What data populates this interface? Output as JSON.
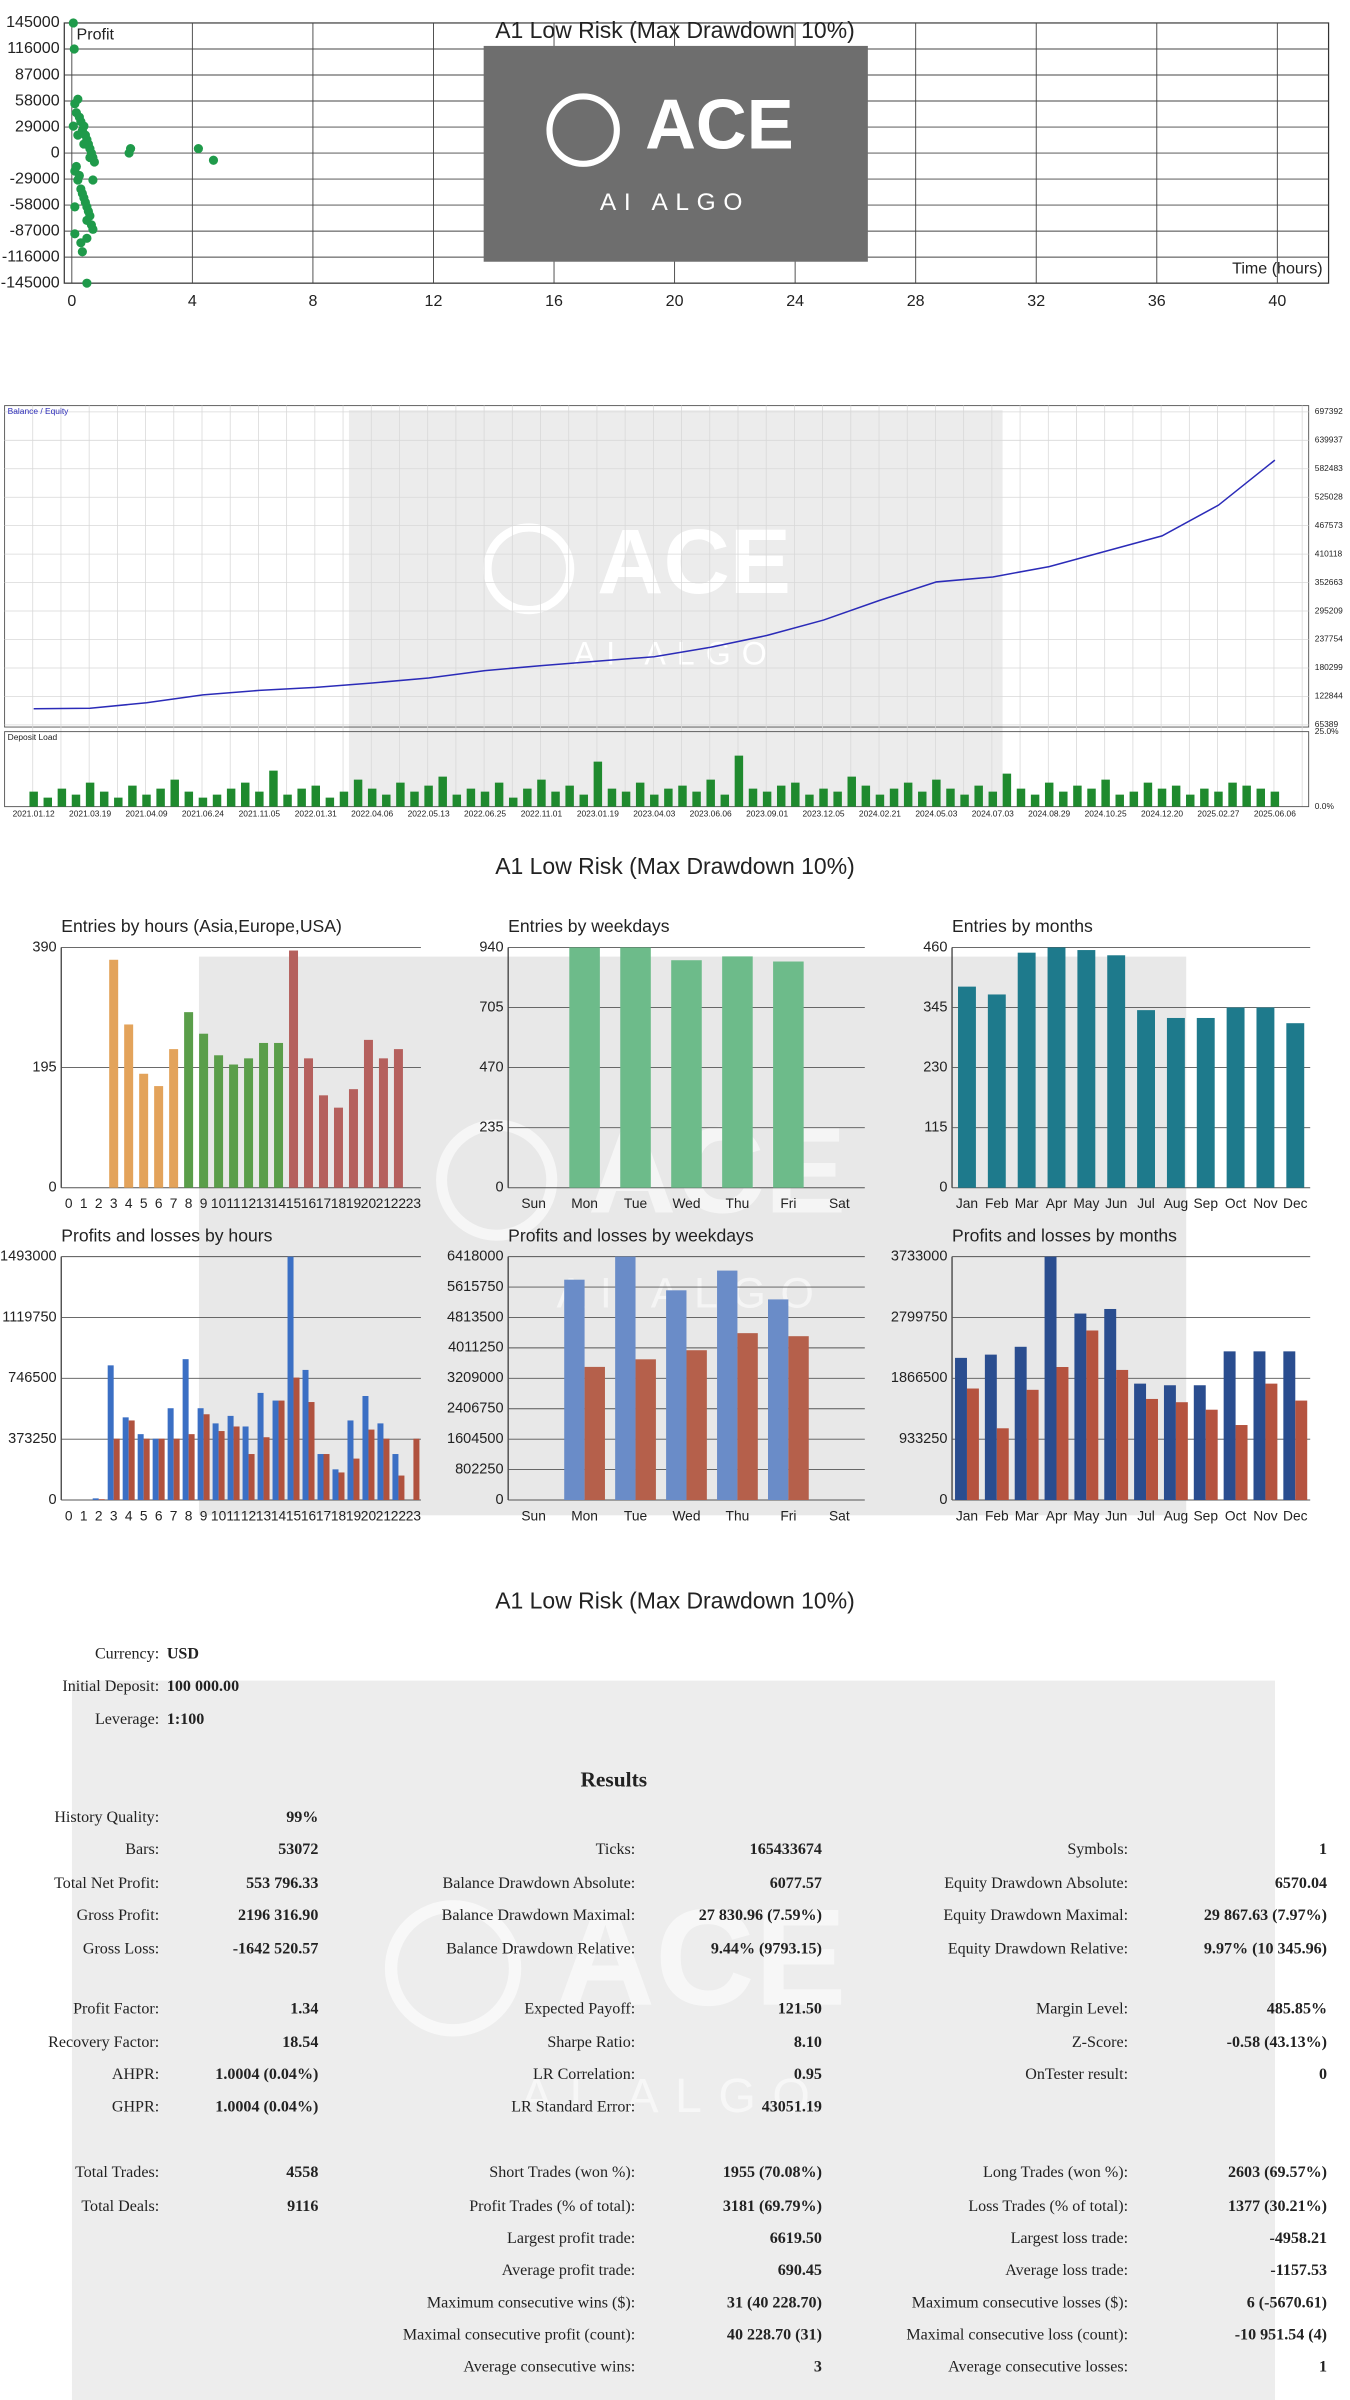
{
  "watermark": {
    "logo": "ACE",
    "tagline": "AI ALGO"
  },
  "chart_data": [
    {
      "type": "scatter",
      "title": "A1 Low Risk (Max Drawdown 10%)",
      "y_label": "Profit",
      "x_label": "Time (hours)",
      "color": "#1f9a4a",
      "grid": true,
      "x": [
        0.1,
        0.15,
        0.2,
        0.25,
        0.3,
        0.35,
        0.4,
        0.45,
        0.5,
        0.55,
        0.6,
        0.65,
        0.7,
        0.75,
        0.1,
        0.2,
        0.3,
        0.4,
        0.5,
        0.6,
        0.7,
        0.15,
        0.25,
        0.35,
        0.45,
        0.55,
        0.65,
        0.1,
        0.3,
        0.5,
        0.7,
        0.2,
        0.4,
        0.6,
        0.05,
        0.08,
        0.5,
        0.35,
        1.9,
        1.95,
        4.2,
        4.7,
        0.05,
        0.1,
        0.5
      ],
      "values": [
        55000,
        45000,
        60000,
        40000,
        35000,
        25000,
        30000,
        20000,
        15000,
        10000,
        5000,
        0,
        -5000,
        -10000,
        -20000,
        -30000,
        -40000,
        -50000,
        -60000,
        -70000,
        -30000,
        -15000,
        -25000,
        -45000,
        -55000,
        -65000,
        -80000,
        -90000,
        -100000,
        -95000,
        -85000,
        20000,
        10000,
        -5000,
        145000,
        116000,
        -145000,
        -110000,
        0,
        5000,
        5000,
        -8000,
        30000,
        -60000,
        -75000
      ],
      "xlim": [
        -0.25,
        41.7
      ],
      "xticks": [
        0,
        4,
        8,
        12,
        16,
        20,
        24,
        28,
        32,
        36,
        40
      ],
      "ylim": [
        -145000,
        145000
      ],
      "yticks": [
        145000,
        116000,
        87000,
        58000,
        29000,
        0,
        -29000,
        -58000,
        -87000,
        -116000,
        -145000
      ]
    },
    {
      "type": "line",
      "categories": [
        "2021.01.12",
        "2021.03.19",
        "2021.04.09",
        "2021.06.24",
        "2021.11.05",
        "2022.01.31",
        "2022.04.06",
        "2022.05.13",
        "2022.06.25",
        "2022.11.01",
        "2023.01.19",
        "2023.04.03",
        "2023.06.06",
        "2023.09.01",
        "2023.12.05",
        "2024.02.21",
        "2024.05.03",
        "2024.07.03",
        "2024.08.29",
        "2024.10.25",
        "2024.12.20",
        "2025.02.27",
        "2025.06.06"
      ],
      "series": [
        {
          "name": "Balance / Equity",
          "color": "#2b2bb8",
          "values": [
            98000,
            99000,
            110000,
            126000,
            135000,
            141000,
            150000,
            160000,
            175000,
            185000,
            194000,
            203000,
            222000,
            246000,
            277000,
            317000,
            354000,
            364000,
            385000,
            416000,
            447000,
            509000,
            600000
          ]
        }
      ],
      "ylim": [
        61000,
        710000
      ],
      "yticks": [
        697392,
        639937,
        582483,
        525028,
        467573,
        410118,
        352663,
        295209,
        237754,
        180299,
        122844,
        65389
      ],
      "grid": true
    },
    {
      "type": "bar",
      "title": "Deposit Load",
      "color": "#1f8a2e",
      "values": [
        5,
        3,
        6,
        4,
        8,
        5,
        3,
        7,
        4,
        6,
        9,
        5,
        3,
        4,
        6,
        8,
        5,
        12,
        4,
        6,
        7,
        3,
        5,
        9,
        6,
        4,
        8,
        5,
        7,
        10,
        4,
        6,
        5,
        8,
        3,
        6,
        9,
        5,
        7,
        4,
        15,
        6,
        5,
        8,
        4,
        6,
        7,
        5,
        9,
        4,
        17,
        6,
        5,
        7,
        8,
        4,
        6,
        5,
        10,
        7,
        4,
        6,
        8,
        5,
        9,
        6,
        4,
        7,
        5,
        11,
        6,
        4,
        8,
        5,
        7,
        6,
        9,
        4,
        5,
        8,
        6,
        7,
        4,
        6,
        5,
        8,
        7,
        6,
        5
      ],
      "ylim": [
        0,
        25
      ],
      "yticks": [
        {
          "value": 25,
          "label": "25.0%"
        },
        {
          "value": 0,
          "label": "0.0%"
        }
      ]
    },
    {
      "type": "bar",
      "title": "Entries by hours (Asia,Europe,USA)",
      "categories": [
        "0",
        "1",
        "2",
        "3",
        "4",
        "5",
        "6",
        "7",
        "8",
        "9",
        "10",
        "11",
        "12",
        "13",
        "14",
        "15",
        "16",
        "17",
        "18",
        "19",
        "20",
        "21",
        "22",
        "23"
      ],
      "values": [
        0,
        0,
        0,
        370,
        265,
        185,
        165,
        225,
        285,
        250,
        215,
        200,
        210,
        235,
        235,
        385,
        210,
        150,
        130,
        160,
        240,
        210,
        225,
        0
      ],
      "colors": [
        "#e3a35b",
        "#e3a35b",
        "#e3a35b",
        "#e3a35b",
        "#e3a35b",
        "#e3a35b",
        "#e3a35b",
        "#e3a35b",
        "#5a9e4a",
        "#5a9e4a",
        "#5a9e4a",
        "#5a9e4a",
        "#5a9e4a",
        "#5a9e4a",
        "#5a9e4a",
        "#b5605d",
        "#b5605d",
        "#b5605d",
        "#b5605d",
        "#b5605d",
        "#b5605d",
        "#b5605d",
        "#b5605d",
        "#b5605d"
      ],
      "ylim": [
        0,
        390
      ],
      "yticks": [
        0,
        195,
        390
      ],
      "grid": true
    },
    {
      "type": "bar",
      "title": "Entries by weekdays",
      "categories": [
        "Sun",
        "Mon",
        "Tue",
        "Wed",
        "Thu",
        "Fri",
        "Sat"
      ],
      "values": [
        0,
        940,
        940,
        890,
        905,
        885,
        0
      ],
      "color": "#6dbb8a",
      "ylim": [
        0,
        940
      ],
      "yticks": [
        0,
        235,
        470,
        705,
        940
      ],
      "grid": true
    },
    {
      "type": "bar",
      "title": "Entries by months",
      "categories": [
        "Jan",
        "Feb",
        "Mar",
        "Apr",
        "May",
        "Jun",
        "Jul",
        "Aug",
        "Sep",
        "Oct",
        "Nov",
        "Dec"
      ],
      "values": [
        385,
        370,
        450,
        460,
        455,
        445,
        340,
        325,
        325,
        345,
        345,
        315
      ],
      "color": "#1e7a8c",
      "ylim": [
        0,
        460
      ],
      "yticks": [
        0,
        115,
        230,
        345,
        460
      ],
      "grid": true
    },
    {
      "type": "bar",
      "title": "Profits and losses by hours",
      "categories": [
        "0",
        "1",
        "2",
        "3",
        "4",
        "5",
        "6",
        "7",
        "8",
        "9",
        "10",
        "11",
        "12",
        "13",
        "14",
        "15",
        "16",
        "17",
        "18",
        "19",
        "20",
        "21",
        "22",
        "23"
      ],
      "series": [
        {
          "color": "#3b6fc4",
          "values": [
            0,
            0,
            10000,
            826000,
            507000,
            404000,
            376000,
            563000,
            864000,
            563000,
            470000,
            516000,
            451000,
            657000,
            610000,
            1493000,
            798000,
            282000,
            188000,
            488000,
            638000,
            470000,
            282000,
            0
          ]
        },
        {
          "color": "#b0523e",
          "values": [
            0,
            0,
            5000,
            376000,
            488000,
            376000,
            376000,
            376000,
            404000,
            526000,
            423000,
            451000,
            282000,
            385000,
            610000,
            751000,
            601000,
            282000,
            169000,
            254000,
            432000,
            376000,
            150000,
            376000
          ]
        }
      ],
      "ylim": [
        0,
        1493000
      ],
      "yticks": [
        0,
        373250,
        746500,
        1119750,
        1493000
      ],
      "grid": true
    },
    {
      "type": "bar",
      "title": "Profits and losses by weekdays",
      "categories": [
        "Sun",
        "Mon",
        "Tue",
        "Wed",
        "Thu",
        "Fri",
        "Sat"
      ],
      "series": [
        {
          "color": "#6a8cc8",
          "values": [
            0,
            5810000,
            6418000,
            5530000,
            6050000,
            5290000,
            0
          ]
        },
        {
          "color": "#b5604b",
          "values": [
            0,
            3510000,
            3710000,
            3950000,
            4400000,
            4320000,
            0
          ]
        }
      ],
      "ylim": [
        0,
        6418000
      ],
      "yticks": [
        0,
        802250,
        1604500,
        2406750,
        3209000,
        4011250,
        4813500,
        5615750,
        6418000
      ],
      "grid": true
    },
    {
      "type": "bar",
      "title": "Profits and losses by months",
      "categories": [
        "Jan",
        "Feb",
        "Mar",
        "Apr",
        "May",
        "Jun",
        "Jul",
        "Aug",
        "Sep",
        "Oct",
        "Nov",
        "Dec"
      ],
      "series": [
        {
          "color": "#2a4d8f",
          "values": [
            2180000,
            2230000,
            2350000,
            3733000,
            2860000,
            2930000,
            1785000,
            1760000,
            1760000,
            2280000,
            2280000,
            2280000
          ]
        },
        {
          "color": "#b5533f",
          "values": [
            1710000,
            1100000,
            1690000,
            2040000,
            2600000,
            1995000,
            1550000,
            1500000,
            1385000,
            1150000,
            1785000,
            1525000
          ]
        }
      ],
      "ylim": [
        0,
        3733000
      ],
      "yticks": [
        0,
        933250,
        1866500,
        2799750,
        3733000
      ],
      "grid": true
    }
  ],
  "bar_section": {
    "title": "A1 Low Risk (Max Drawdown 10%)"
  },
  "report": {
    "title": "A1 Low Risk (Max Drawdown 10%)",
    "info": [
      [
        "Currency:",
        "USD"
      ],
      [
        "Initial Deposit:",
        "100 000.00"
      ],
      [
        "Leverage:",
        "1:100"
      ]
    ],
    "heading": "Results",
    "rows": [
      {
        "left": [
          "History Quality:",
          "99%"
        ]
      },
      {
        "left": [
          "Bars:",
          "53072"
        ],
        "mid": [
          "Ticks:",
          "165433674"
        ],
        "right": [
          "Symbols:",
          "1"
        ]
      },
      {
        "left": [
          "Total Net Profit:",
          "553 796.33"
        ],
        "mid": [
          "Balance Drawdown Absolute:",
          "6077.57"
        ],
        "right": [
          "Equity Drawdown Absolute:",
          "6570.04"
        ]
      },
      {
        "left": [
          "Gross Profit:",
          "2196 316.90"
        ],
        "mid": [
          "Balance Drawdown Maximal:",
          "27 830.96 (7.59%)"
        ],
        "right": [
          "Equity Drawdown Maximal:",
          "29 867.63 (7.97%)"
        ]
      },
      {
        "left": [
          "Gross Loss:",
          "-1642 520.57"
        ],
        "mid": [
          "Balance Drawdown Relative:",
          "9.44% (9793.15)"
        ],
        "right": [
          "Equity Drawdown Relative:",
          "9.97% (10 345.96)"
        ]
      },
      {
        "left": [
          "Profit Factor:",
          "1.34"
        ],
        "mid": [
          "Expected Payoff:",
          "121.50"
        ],
        "right": [
          "Margin Level:",
          "485.85%"
        ]
      },
      {
        "left": [
          "Recovery Factor:",
          "18.54"
        ],
        "mid": [
          "Sharpe Ratio:",
          "8.10"
        ],
        "right": [
          "Z-Score:",
          "-0.58 (43.13%)"
        ]
      },
      {
        "left": [
          "AHPR:",
          "1.0004 (0.04%)"
        ],
        "mid": [
          "LR Correlation:",
          "0.95"
        ],
        "right": [
          "OnTester result:",
          "0"
        ]
      },
      {
        "left": [
          "GHPR:",
          "1.0004 (0.04%)"
        ],
        "mid": [
          "LR Standard Error:",
          "43051.19"
        ]
      },
      {
        "left": [
          "Total Trades:",
          "4558"
        ],
        "mid": [
          "Short Trades (won %):",
          "1955 (70.08%)"
        ],
        "right": [
          "Long Trades (won %):",
          "2603 (69.57%)"
        ]
      },
      {
        "left": [
          "Total Deals:",
          "9116"
        ],
        "mid": [
          "Profit Trades (% of total):",
          "3181 (69.79%)"
        ],
        "right": [
          "Loss Trades (% of total):",
          "1377 (30.21%)"
        ]
      },
      {
        "mid": [
          "Largest profit trade:",
          "6619.50"
        ],
        "right": [
          "Largest loss trade:",
          "-4958.21"
        ]
      },
      {
        "mid": [
          "Average profit trade:",
          "690.45"
        ],
        "right": [
          "Average loss trade:",
          "-1157.53"
        ]
      },
      {
        "mid": [
          "Maximum consecutive wins ($):",
          "31 (40 228.70)"
        ],
        "right": [
          "Maximum consecutive losses ($):",
          "6 (-5670.61)"
        ]
      },
      {
        "mid": [
          "Maximal consecutive profit (count):",
          "40 228.70 (31)"
        ],
        "right": [
          "Maximal consecutive loss (count):",
          "-10 951.54 (4)"
        ]
      },
      {
        "mid": [
          "Average consecutive wins:",
          "3"
        ],
        "right": [
          "Average consecutive losses:",
          "1"
        ]
      }
    ]
  }
}
